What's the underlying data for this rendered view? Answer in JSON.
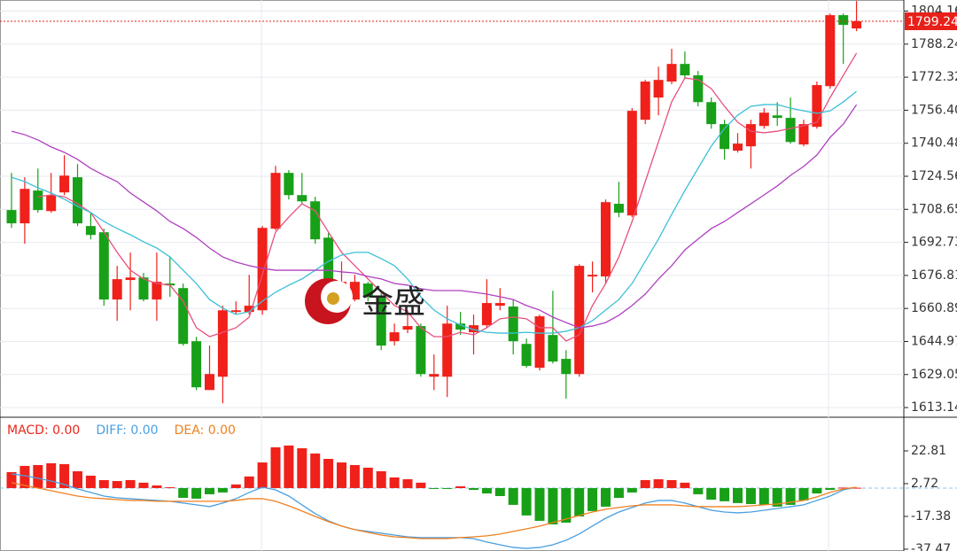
{
  "chart_data": [
    {
      "type": "candlestick",
      "watermark": "金盛",
      "up_color": "#f0201a",
      "down_color": "#18a018",
      "ylim": [
        1608.9,
        1809.5
      ],
      "yticks": [
        1613.14,
        1629.05,
        1644.97,
        1660.89,
        1676.81,
        1692.73,
        1708.65,
        1724.56,
        1740.48,
        {
          "value": 1756.4,
          "label": "1756.40"
        },
        1772.32,
        1788.24,
        1804.16
      ],
      "grid": true,
      "last_price": 1799.24,
      "open": [
        1708.3,
        1701.9,
        1717.7,
        1707.8,
        1716.8,
        1724.1,
        1700.6,
        1697.6,
        1665.2,
        1674.6,
        1675.8,
        1665.2,
        1672.9,
        1670.7,
        1645.1,
        1621.6,
        1628.0,
        1659.2,
        1659.2,
        1660.0,
        1699.3,
        1726.2,
        1715.5,
        1712.5,
        1695.0,
        1668.6,
        1665.2,
        1672.9,
        1666.5,
        1645.1,
        1650.7,
        1652.4,
        1628.0,
        1628.0,
        1653.6,
        1649.4,
        1652.8,
        1662.2,
        1661.8,
        1643.8,
        1632.3,
        1648.1,
        1636.6,
        1629.3,
        1676.3,
        1676.3,
        1711.3,
        1705.7,
        1751.8,
        1762.5,
        1770.2,
        1778.7,
        1773.2,
        1760.3,
        1749.7,
        1736.9,
        1739.0,
        1748.8,
        1753.9,
        1752.7,
        1739.9,
        1748.4,
        1768.0,
        1802.2,
        1795.8
      ],
      "high": [
        1726.2,
        1724.1,
        1728.3,
        1726.2,
        1734.7,
        1730.5,
        1707.0,
        1699.3,
        1681.4,
        1687.8,
        1678.0,
        1687.8,
        1685.7,
        1672.9,
        1647.2,
        1643.0,
        1662.2,
        1664.3,
        1677.1,
        1700.6,
        1729.6,
        1727.5,
        1726.2,
        1714.7,
        1697.2,
        1683.5,
        1677.1,
        1673.7,
        1668.6,
        1653.6,
        1660.0,
        1653.6,
        1638.7,
        1662.2,
        1659.2,
        1657.9,
        1675.0,
        1670.7,
        1665.2,
        1646.4,
        1657.9,
        1669.4,
        1640.8,
        1682.2,
        1683.5,
        1713.4,
        1721.9,
        1757.4,
        1771.0,
        1777.4,
        1786.0,
        1784.7,
        1775.3,
        1762.5,
        1751.8,
        1745.4,
        1751.8,
        1757.4,
        1760.3,
        1762.5,
        1751.8,
        1770.2,
        1803.0,
        1803.0,
        1809.0
      ],
      "low": [
        1699.7,
        1692.1,
        1707.0,
        1707.0,
        1715.5,
        1700.6,
        1694.2,
        1662.2,
        1654.9,
        1660.0,
        1664.3,
        1654.9,
        1666.5,
        1643.0,
        1621.6,
        1621.6,
        1615.2,
        1657.9,
        1657.9,
        1657.9,
        1698.5,
        1713.4,
        1711.3,
        1692.1,
        1666.5,
        1663.5,
        1664.3,
        1664.3,
        1640.8,
        1643.0,
        1649.0,
        1628.0,
        1621.6,
        1618.2,
        1648.1,
        1638.7,
        1651.5,
        1660.0,
        1638.7,
        1632.3,
        1631.0,
        1634.4,
        1617.4,
        1628.0,
        1668.6,
        1672.9,
        1704.9,
        1704.9,
        1749.7,
        1753.9,
        1768.9,
        1771.9,
        1758.2,
        1747.5,
        1732.6,
        1736.0,
        1728.3,
        1747.5,
        1748.8,
        1740.3,
        1739.0,
        1747.5,
        1766.7,
        1778.7,
        1794.5
      ],
      "close": [
        1701.9,
        1718.5,
        1708.3,
        1715.5,
        1724.9,
        1701.9,
        1696.3,
        1665.2,
        1675.0,
        1675.8,
        1665.2,
        1673.7,
        1672.0,
        1643.8,
        1622.9,
        1629.3,
        1660.0,
        1660.0,
        1662.2,
        1699.7,
        1726.2,
        1715.5,
        1712.5,
        1694.2,
        1668.6,
        1673.7,
        1673.7,
        1666.5,
        1643.0,
        1649.4,
        1652.4,
        1629.3,
        1629.3,
        1653.6,
        1650.7,
        1652.8,
        1663.5,
        1663.5,
        1645.1,
        1633.2,
        1657.1,
        1635.3,
        1629.3,
        1681.4,
        1677.1,
        1712.1,
        1707.0,
        1756.1,
        1770.2,
        1771.0,
        1778.7,
        1773.2,
        1760.3,
        1749.7,
        1737.7,
        1740.3,
        1749.7,
        1755.2,
        1752.7,
        1741.1,
        1749.7,
        1768.5,
        1802.2,
        1797.5,
        1799.24
      ],
      "series": [
        {
          "color": "#e8507a",
          "values": [
            null,
            null,
            1714.7,
            1715.6,
            1714.7,
            1711.3,
            1707.1,
            1697.7,
            1687.9,
            1679.3,
            1675.1,
            1672.9,
            1672.1,
            1664.4,
            1651.6,
            1647.3,
            1649.4,
            1651.6,
            1656.7,
            1677.2,
            1697.7,
            1704.9,
            1711.3,
            1707.9,
            1697.7,
            1687.9,
            1681.5,
            1675.1,
            1668.7,
            1662.3,
            1659.3,
            1651.6,
            1647.3,
            1647.3,
            1649.4,
            1648.2,
            1651.6,
            1655.9,
            1656.7,
            1655.9,
            1651.6,
            1651.6,
            1645.2,
            1648.2,
            1662.3,
            1672.9,
            1685.7,
            1702.8,
            1722.0,
            1741.2,
            1760.4,
            1771.9,
            1771.1,
            1766.8,
            1758.3,
            1750.6,
            1746.3,
            1745.5,
            1746.3,
            1747.6,
            1748.9,
            1750.6,
            1762.5,
            1773.2,
            1783.9
          ]
        },
        {
          "color": "#3cc0d8",
          "values": [
            1724.1,
            1722.0,
            1719.0,
            1716.5,
            1713.5,
            1710.1,
            1707.1,
            1702.8,
            1699.4,
            1696.4,
            1693.0,
            1690.0,
            1685.7,
            1679.3,
            1672.9,
            1665.2,
            1661.0,
            1658.0,
            1659.3,
            1664.4,
            1668.7,
            1672.1,
            1675.1,
            1679.3,
            1683.6,
            1686.6,
            1687.9,
            1687.9,
            1684.9,
            1681.5,
            1675.1,
            1666.5,
            1660.1,
            1655.9,
            1652.9,
            1650.7,
            1649.4,
            1649.0,
            1649.0,
            1649.4,
            1649.0,
            1649.0,
            1649.9,
            1651.6,
            1655.0,
            1660.1,
            1665.2,
            1672.9,
            1683.6,
            1694.3,
            1706.2,
            1717.7,
            1728.4,
            1739.1,
            1747.6,
            1754.0,
            1758.3,
            1759.1,
            1759.1,
            1757.4,
            1756.1,
            1754.9,
            1756.1,
            1760.4,
            1765.5
          ]
        },
        {
          "color": "#b040c0",
          "values": [
            1746.3,
            1744.6,
            1742.1,
            1738.7,
            1736.1,
            1732.7,
            1728.4,
            1725.0,
            1722.0,
            1716.5,
            1712.2,
            1707.9,
            1702.8,
            1699.4,
            1695.1,
            1690.0,
            1685.7,
            1683.2,
            1681.5,
            1680.2,
            1679.3,
            1679.3,
            1679.3,
            1679.3,
            1679.3,
            1678.5,
            1678.0,
            1676.3,
            1675.1,
            1672.9,
            1672.1,
            1670.4,
            1669.5,
            1669.5,
            1669.5,
            1668.7,
            1667.8,
            1666.5,
            1665.2,
            1662.3,
            1660.1,
            1656.7,
            1654.1,
            1651.6,
            1652.4,
            1654.1,
            1657.6,
            1662.3,
            1667.8,
            1675.1,
            1681.5,
            1689.1,
            1694.3,
            1699.4,
            1702.8,
            1707.1,
            1711.3,
            1715.6,
            1719.9,
            1725.0,
            1729.3,
            1734.8,
            1743.3,
            1749.7,
            1759.1
          ]
        }
      ]
    },
    {
      "type": "macd",
      "up_color": "#f0201a",
      "down_color": "#18a018",
      "ylim": [
        -38.6,
        42.9
      ],
      "yticks": [
        22.81,
        2.72,
        -17.38,
        -37.47
      ],
      "series": [
        {
          "name": "MACD: 0.00",
          "color": "#e8281e",
          "values": [
            9.8,
            13.6,
            14.1,
            15.2,
            14.7,
            10.3,
            7.6,
            4.9,
            4.3,
            4.9,
            3.3,
            1.6,
            0.5,
            -6.0,
            -6.5,
            -3.8,
            -2.7,
            2.2,
            7.1,
            15.7,
            25.0,
            26.1,
            24.4,
            21.2,
            17.9,
            15.7,
            14.1,
            12.5,
            10.3,
            6.5,
            5.4,
            3.3,
            -0.3,
            -0.3,
            1.1,
            -1.1,
            -3.3,
            -4.9,
            -10.3,
            -16.8,
            -20.1,
            -22.3,
            -21.2,
            -17.4,
            -14.1,
            -11.4,
            -6.0,
            -2.7,
            4.9,
            5.4,
            4.9,
            3.3,
            -3.8,
            -7.1,
            -8.1,
            -9.2,
            -9.8,
            -10.3,
            -11.4,
            -10.3,
            -7.6,
            -3.3,
            -1.1,
            0.3,
            0.2
          ]
        },
        {
          "name": "DIFF: 0.00",
          "color": "#4a9fe0",
          "values": [
            8.7,
            7.6,
            6.0,
            4.3,
            2.2,
            -0.5,
            -2.7,
            -4.9,
            -6.0,
            -6.5,
            -7.1,
            -7.6,
            -8.1,
            -9.2,
            -10.3,
            -11.4,
            -9.2,
            -6.5,
            -2.7,
            0.5,
            -1.1,
            -4.9,
            -10.3,
            -15.7,
            -20.1,
            -23.3,
            -25.5,
            -26.6,
            -27.7,
            -28.8,
            -29.9,
            -30.4,
            -30.4,
            -30.4,
            -30.4,
            -31.0,
            -33.1,
            -34.8,
            -36.4,
            -37.0,
            -36.4,
            -34.8,
            -32.0,
            -28.2,
            -23.3,
            -18.5,
            -14.7,
            -11.9,
            -9.2,
            -7.6,
            -7.6,
            -9.2,
            -11.4,
            -13.6,
            -14.7,
            -15.2,
            -14.7,
            -13.6,
            -12.5,
            -11.4,
            -10.3,
            -7.6,
            -4.9,
            -1.1,
            0.5
          ]
        },
        {
          "name": "DEA: 0.00",
          "color": "#f08020",
          "values": [
            3.3,
            1.6,
            0.0,
            -1.6,
            -3.3,
            -4.9,
            -6.0,
            -6.5,
            -7.1,
            -7.6,
            -7.6,
            -8.1,
            -8.1,
            -8.1,
            -8.1,
            -8.1,
            -8.1,
            -7.6,
            -6.5,
            -6.5,
            -8.1,
            -10.9,
            -14.1,
            -17.4,
            -20.6,
            -23.3,
            -25.5,
            -27.2,
            -28.8,
            -29.9,
            -30.4,
            -31.0,
            -31.0,
            -31.0,
            -30.4,
            -29.9,
            -29.3,
            -28.2,
            -26.6,
            -25.0,
            -23.3,
            -21.2,
            -19.0,
            -16.8,
            -14.7,
            -13.0,
            -11.9,
            -10.9,
            -10.3,
            -10.3,
            -10.3,
            -10.9,
            -11.4,
            -11.4,
            -11.4,
            -11.4,
            -10.9,
            -10.3,
            -9.8,
            -8.7,
            -7.6,
            -5.4,
            -2.7,
            -0.5,
            0.5
          ]
        }
      ]
    }
  ]
}
